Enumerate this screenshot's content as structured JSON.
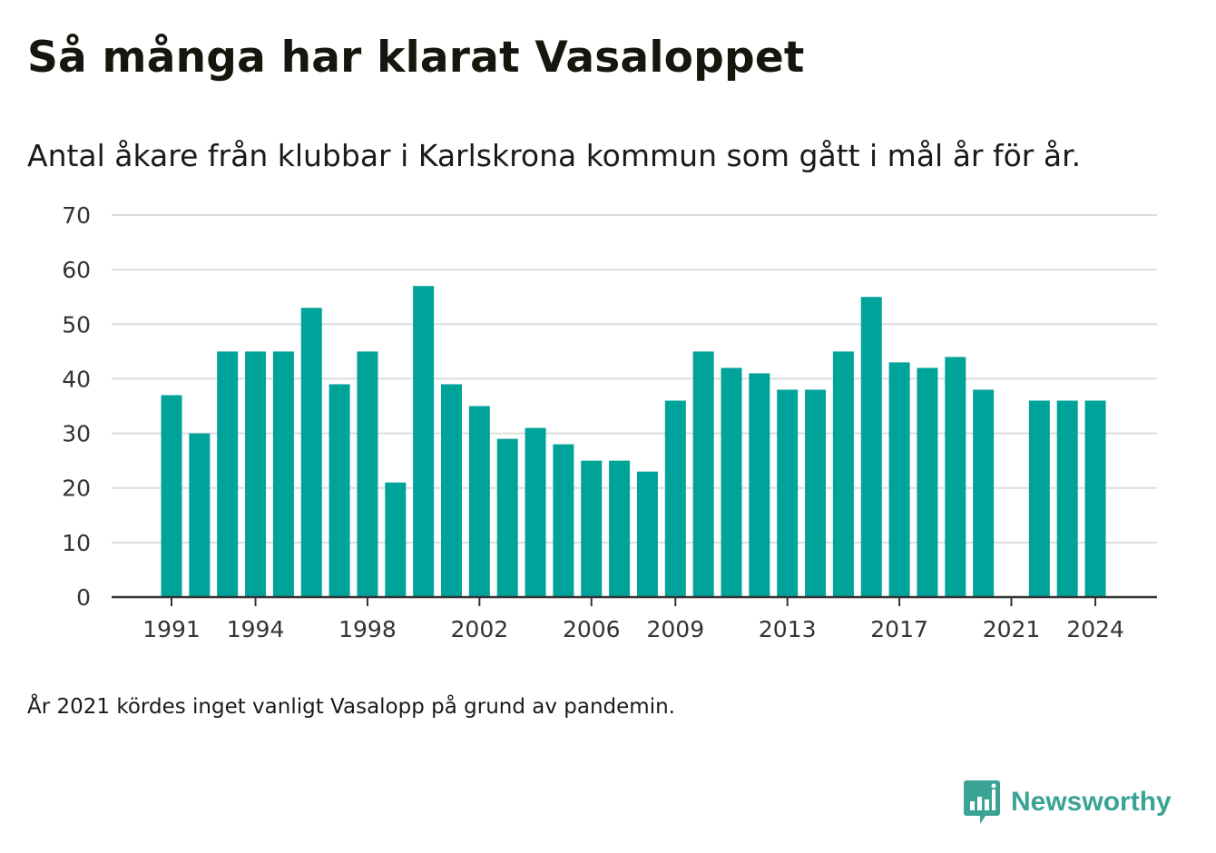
{
  "title": "Så många har klarat Vasaloppet",
  "subtitle": "Antal åkare från klubbar i Karlskrona kommun som gått i mål år för år.",
  "note": "År 2021 kördes inget vanligt Vasalopp på grund av pandemin.",
  "brand": {
    "name": "Newsworthy",
    "icon": "newsworthy-logo-icon"
  },
  "colors": {
    "bar": "#00a399",
    "grid": "#dddddd",
    "axis": "#333333",
    "tick_text": "#333333",
    "brand": "#3aa394"
  },
  "chart_data": {
    "type": "bar",
    "categories": [
      "1991",
      "1992",
      "1993",
      "1994",
      "1995",
      "1996",
      "1997",
      "1998",
      "1999",
      "2000",
      "2001",
      "2002",
      "2003",
      "2004",
      "2005",
      "2006",
      "2007",
      "2008",
      "2009",
      "2010",
      "2011",
      "2012",
      "2013",
      "2014",
      "2015",
      "2016",
      "2017",
      "2018",
      "2019",
      "2020",
      "2021",
      "2022",
      "2023",
      "2024"
    ],
    "values": [
      37,
      30,
      45,
      45,
      45,
      53,
      39,
      45,
      21,
      57,
      39,
      35,
      29,
      31,
      28,
      25,
      25,
      23,
      36,
      45,
      42,
      41,
      38,
      38,
      45,
      55,
      43,
      42,
      44,
      38,
      null,
      36,
      36,
      36
    ],
    "x_tick_labels": [
      "1991",
      "1994",
      "1998",
      "2002",
      "2006",
      "2009",
      "2013",
      "2017",
      "2021",
      "2024"
    ],
    "y_ticks": [
      0,
      10,
      20,
      30,
      40,
      50,
      60,
      70
    ],
    "ylim": [
      0,
      70
    ],
    "grid": true,
    "legend": "none"
  }
}
